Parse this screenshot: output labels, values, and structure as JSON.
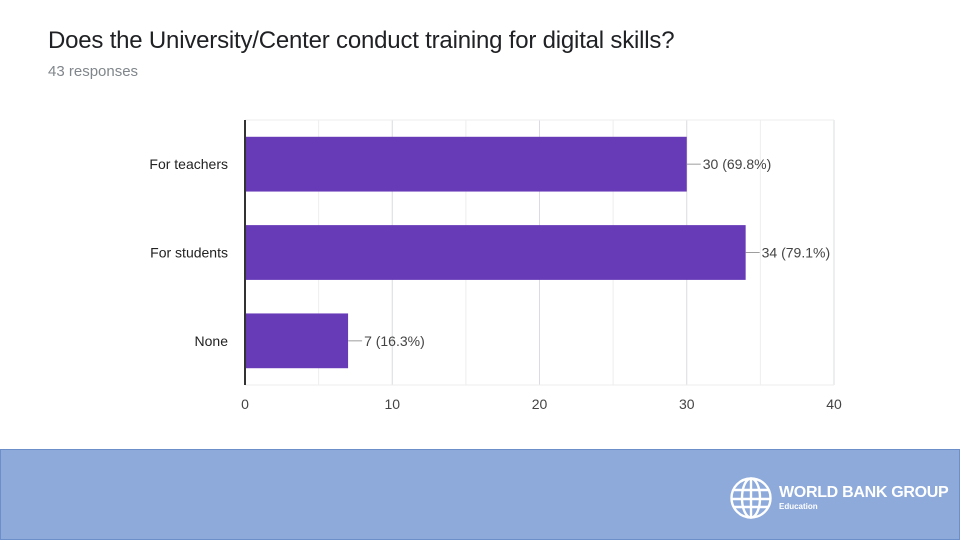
{
  "slide": {
    "title": "Does the University/Center conduct training for digital skills?",
    "subtitle": "43 responses"
  },
  "chart_data": {
    "type": "bar",
    "orientation": "horizontal",
    "categories": [
      "For teachers",
      "For students",
      "None"
    ],
    "values": [
      30,
      34,
      7
    ],
    "data_labels": [
      "30 (69.8%)",
      "34 (79.1%)",
      "7 (16.3%)"
    ],
    "xlim": [
      0,
      40
    ],
    "x_ticks": [
      "0",
      "10",
      "20",
      "30",
      "40"
    ],
    "grid": true,
    "bar_color": "#673ab7",
    "title": "Does the University/Center conduct training for digital skills?",
    "subtitle": "43 responses"
  },
  "footer": {
    "band_color": "#8eaadb",
    "logo_name": "WORLD BANK GROUP",
    "logo_sub": "Education",
    "logo_icon": "globe-icon"
  }
}
